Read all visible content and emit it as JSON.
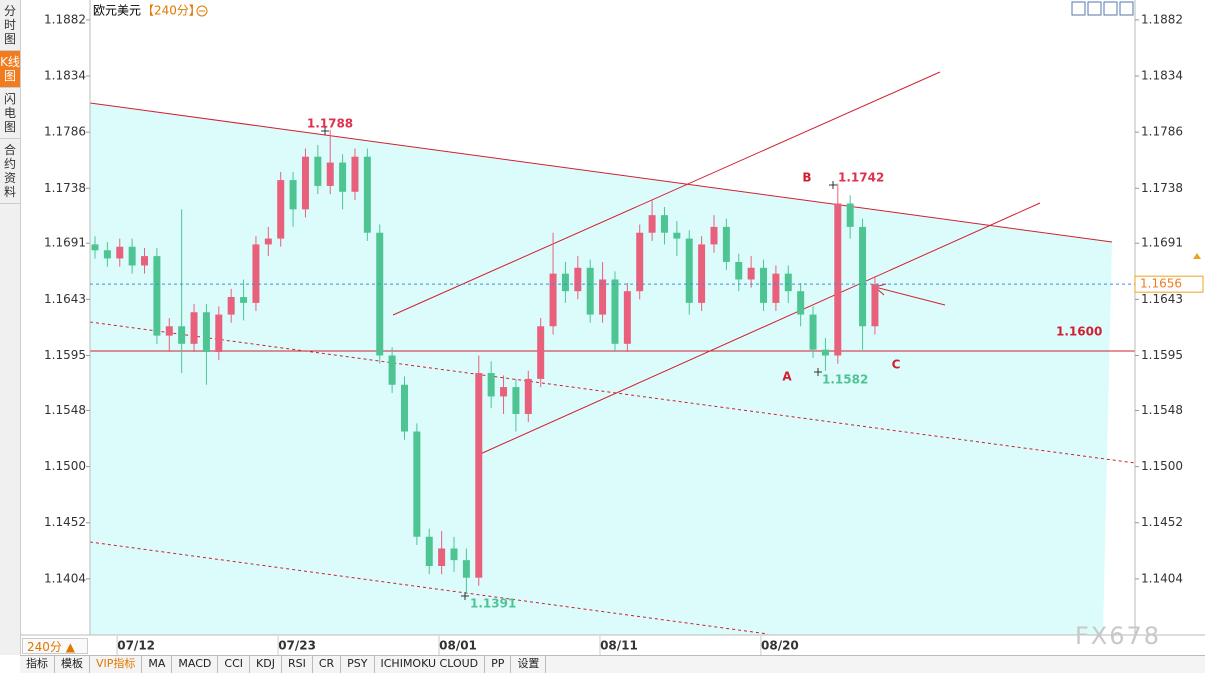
{
  "title": "欧元美元",
  "period": "【240分】",
  "sidebar_tabs": [
    "分时图",
    "K线图",
    "闪电图",
    "合约资料"
  ],
  "period_selector": "240分 ▲",
  "toolbar": [
    "指标",
    "模板",
    "VIP指标",
    "MA",
    "MACD",
    "CCI",
    "KDJ",
    "RSI",
    "CR",
    "PSY",
    "ICHIMOKU CLOUD",
    "PP",
    "设置"
  ],
  "watermark": "FX678",
  "chart_data": {
    "type": "candlestick",
    "categories": [
      null,
      null,
      null,
      "07/12",
      null,
      null,
      null,
      null,
      null,
      null,
      null,
      null,
      null,
      null,
      null,
      null,
      "07/23",
      null,
      null,
      null,
      null,
      null,
      null,
      null,
      null,
      null,
      null,
      null,
      null,
      "08/01",
      null,
      null,
      null,
      null,
      null,
      null,
      null,
      null,
      null,
      null,
      null,
      null,
      "08/11",
      null,
      null,
      null,
      null,
      null,
      null,
      null,
      null,
      null,
      null,
      null,
      null,
      "08/20",
      null,
      null,
      null,
      null,
      null,
      null,
      null,
      null
    ],
    "open": [
      1.169,
      1.1685,
      1.1678,
      1.1688,
      1.1672,
      1.168,
      1.1612,
      1.162,
      1.1605,
      1.1632,
      1.1598,
      1.163,
      1.1645,
      1.164,
      1.169,
      1.1695,
      1.1745,
      1.172,
      1.1765,
      1.174,
      1.176,
      1.1735,
      1.1765,
      1.17,
      1.1595,
      1.157,
      1.153,
      1.144,
      1.1415,
      1.143,
      1.142,
      1.1405,
      1.158,
      1.156,
      1.1568,
      1.1545,
      1.1575,
      1.162,
      1.1665,
      1.165,
      1.167,
      1.163,
      1.166,
      1.1605,
      1.165,
      1.17,
      1.1715,
      1.17,
      1.1695,
      1.164,
      1.169,
      1.1705,
      1.1675,
      1.166,
      1.167,
      1.164,
      1.1665,
      1.165,
      1.163,
      1.16,
      1.1595,
      1.1725,
      1.1705,
      1.162
    ],
    "high": [
      1.1697,
      1.1692,
      1.1695,
      1.1695,
      1.1687,
      1.1687,
      1.1627,
      1.172,
      1.1639,
      1.1639,
      1.1637,
      1.1652,
      1.166,
      1.1697,
      1.1705,
      1.1752,
      1.1752,
      1.1772,
      1.1775,
      1.1788,
      1.1767,
      1.1772,
      1.1772,
      1.1707,
      1.1602,
      1.1577,
      1.1537,
      1.1447,
      1.1445,
      1.144,
      1.143,
      1.1595,
      1.159,
      1.1578,
      1.1575,
      1.1582,
      1.1627,
      1.17,
      1.1675,
      1.168,
      1.1677,
      1.1675,
      1.1667,
      1.1657,
      1.1707,
      1.1728,
      1.1722,
      1.171,
      1.1702,
      1.1697,
      1.1715,
      1.1712,
      1.1682,
      1.168,
      1.1677,
      1.1672,
      1.1672,
      1.1657,
      1.1637,
      1.161,
      1.1742,
      1.1732,
      1.1712,
      1.1663
    ],
    "low": [
      1.1678,
      1.1671,
      1.1671,
      1.1665,
      1.1665,
      1.1605,
      1.1598,
      1.158,
      1.1598,
      1.157,
      1.1591,
      1.1623,
      1.1625,
      1.1633,
      1.168,
      1.1688,
      1.1705,
      1.1713,
      1.1733,
      1.1733,
      1.172,
      1.1728,
      1.1693,
      1.1588,
      1.1563,
      1.1523,
      1.1433,
      1.1408,
      1.1408,
      1.141,
      1.1391,
      1.1398,
      1.155,
      1.1545,
      1.153,
      1.1538,
      1.1568,
      1.1613,
      1.164,
      1.1643,
      1.1623,
      1.1623,
      1.1598,
      1.1598,
      1.1643,
      1.1693,
      1.169,
      1.168,
      1.163,
      1.1633,
      1.1683,
      1.1668,
      1.165,
      1.1653,
      1.1633,
      1.1633,
      1.164,
      1.162,
      1.1593,
      1.1582,
      1.1588,
      1.1695,
      1.16,
      1.1613
    ],
    "close": [
      1.1685,
      1.1678,
      1.1688,
      1.1672,
      1.168,
      1.1612,
      1.162,
      1.1605,
      1.1632,
      1.1598,
      1.163,
      1.1645,
      1.164,
      1.169,
      1.1695,
      1.1745,
      1.172,
      1.1765,
      1.174,
      1.176,
      1.1735,
      1.1765,
      1.17,
      1.1595,
      1.157,
      1.153,
      1.144,
      1.1415,
      1.143,
      1.142,
      1.1405,
      1.158,
      1.156,
      1.1568,
      1.1545,
      1.1575,
      1.162,
      1.1665,
      1.165,
      1.167,
      1.163,
      1.166,
      1.1605,
      1.165,
      1.17,
      1.1715,
      1.17,
      1.1695,
      1.164,
      1.169,
      1.1705,
      1.1675,
      1.166,
      1.167,
      1.164,
      1.1665,
      1.165,
      1.163,
      1.16,
      1.1595,
      1.1725,
      1.1705,
      1.162,
      1.1656
    ],
    "up_color": "#e8607c",
    "down_color": "#4fc493",
    "ylim": [
      1.1356,
      1.1899
    ],
    "yticks": [
      {
        "value": 1.1882,
        "label": "1.1882"
      },
      {
        "value": 1.1834,
        "label": "1.1834"
      },
      {
        "value": 1.1786,
        "label": "1.1786"
      },
      {
        "value": 1.1738,
        "label": "1.1738"
      },
      {
        "value": 1.1691,
        "label": "1.1691"
      },
      {
        "value": 1.1643,
        "label": "1.1643"
      },
      {
        "value": 1.1595,
        "label": "1.1595"
      },
      {
        "value": 1.1548,
        "label": "1.1548"
      },
      {
        "value": 1.15,
        "label": "1.1500"
      },
      {
        "value": 1.1452,
        "label": "1.1452"
      },
      {
        "value": 1.1404,
        "label": "1.1404"
      }
    ],
    "last_price": {
      "value": 1.1656,
      "label": "1.1656"
    },
    "annotations": [
      "1.1788",
      "1.1742",
      "1.1582",
      "1.1391",
      "1.1600",
      "A",
      "B",
      "C"
    ]
  }
}
